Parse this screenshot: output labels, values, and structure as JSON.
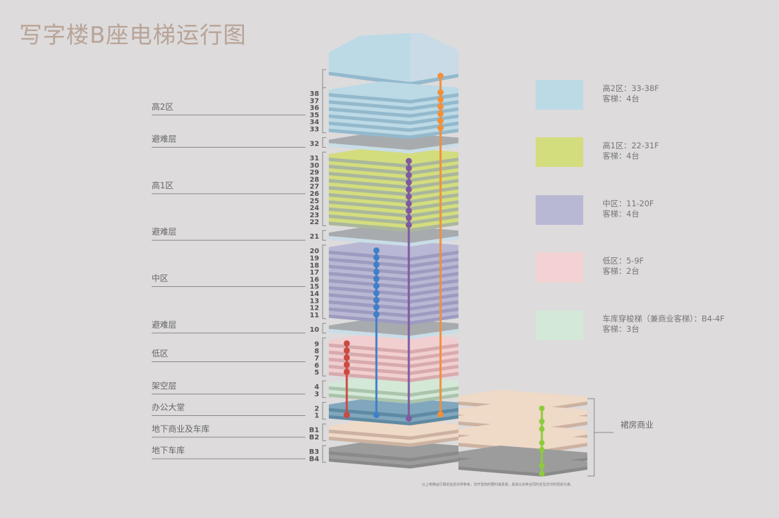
{
  "title": "写字楼B座电梯运行图",
  "zone_colors": {
    "high2": {
      "face": "#bcd9e6",
      "edge": "#93b9cd"
    },
    "refuge": {
      "face": "#a8abae",
      "edge": "#c8dde7"
    },
    "high1": {
      "face": "#d3dd7d",
      "edge": "#aab79c"
    },
    "mid": {
      "face": "#b9b8d4",
      "edge": "#9d9bc0"
    },
    "low": {
      "face": "#f1cfd1",
      "edge": "#d8aaae"
    },
    "shuttle": {
      "face": "#d4e8d8",
      "edge": "#abc4ac"
    },
    "lobby": {
      "face": "#80a7bd",
      "edge": "#5f8aa3"
    },
    "basement_retail": {
      "face": "#efd9c7",
      "edge": "#ccb2a1"
    },
    "garage": {
      "face": "#9c9c9c",
      "edge": "#8a8a8a"
    }
  },
  "floors": [
    {
      "label": "38",
      "zone": "high2"
    },
    {
      "label": "37",
      "zone": "high2"
    },
    {
      "label": "36",
      "zone": "high2"
    },
    {
      "label": "35",
      "zone": "high2"
    },
    {
      "label": "34",
      "zone": "high2"
    },
    {
      "label": "33",
      "zone": "high2"
    },
    {
      "label": "32",
      "zone": "refuge"
    },
    {
      "label": "31",
      "zone": "high1"
    },
    {
      "label": "30",
      "zone": "high1"
    },
    {
      "label": "29",
      "zone": "high1"
    },
    {
      "label": "28",
      "zone": "high1"
    },
    {
      "label": "27",
      "zone": "high1"
    },
    {
      "label": "26",
      "zone": "high1"
    },
    {
      "label": "25",
      "zone": "high1"
    },
    {
      "label": "24",
      "zone": "high1"
    },
    {
      "label": "23",
      "zone": "high1"
    },
    {
      "label": "22",
      "zone": "high1"
    },
    {
      "label": "21",
      "zone": "refuge"
    },
    {
      "label": "20",
      "zone": "mid"
    },
    {
      "label": "19",
      "zone": "mid"
    },
    {
      "label": "18",
      "zone": "mid"
    },
    {
      "label": "17",
      "zone": "mid"
    },
    {
      "label": "16",
      "zone": "mid"
    },
    {
      "label": "15",
      "zone": "mid"
    },
    {
      "label": "14",
      "zone": "mid"
    },
    {
      "label": "13",
      "zone": "mid"
    },
    {
      "label": "12",
      "zone": "mid"
    },
    {
      "label": "11",
      "zone": "mid"
    },
    {
      "label": "10",
      "zone": "refuge"
    },
    {
      "label": "9",
      "zone": "low"
    },
    {
      "label": "8",
      "zone": "low"
    },
    {
      "label": "7",
      "zone": "low"
    },
    {
      "label": "6",
      "zone": "low"
    },
    {
      "label": "5",
      "zone": "low"
    },
    {
      "label": "4",
      "zone": "shuttle"
    },
    {
      "label": "3",
      "zone": "shuttle"
    },
    {
      "label": "2",
      "zone": "lobby"
    },
    {
      "label": "1",
      "zone": "lobby"
    },
    {
      "label": "B1",
      "zone": "basement_retail"
    },
    {
      "label": "B2",
      "zone": "basement_retail"
    },
    {
      "label": "B3",
      "zone": "garage"
    },
    {
      "label": "B4",
      "zone": "garage"
    }
  ],
  "zone_labels": [
    {
      "text": "高2区",
      "zone_floors": [
        "38",
        "33"
      ]
    },
    {
      "text": "避难层",
      "zone_floors": [
        "32",
        "32"
      ]
    },
    {
      "text": "高1区",
      "zone_floors": [
        "31",
        "22"
      ]
    },
    {
      "text": "避难层",
      "zone_floors": [
        "21",
        "21"
      ]
    },
    {
      "text": "中区",
      "zone_floors": [
        "20",
        "11"
      ]
    },
    {
      "text": "避难层",
      "zone_floors": [
        "10",
        "10"
      ]
    },
    {
      "text": "低区",
      "zone_floors": [
        "9",
        "5"
      ]
    },
    {
      "text": "架空层",
      "zone_floors": [
        "4",
        "3"
      ]
    },
    {
      "text": "办公大堂",
      "zone_floors": [
        "2",
        "1"
      ]
    },
    {
      "text": "地下商业及车库",
      "zone_floors": [
        "B1",
        "B2"
      ]
    },
    {
      "text": "地下车库",
      "zone_floors": [
        "B3",
        "B4"
      ]
    }
  ],
  "elevators": [
    {
      "color": "#cc4a3f",
      "stops": [
        "9",
        "8",
        "7",
        "6",
        "5",
        "1"
      ]
    },
    {
      "color": "#3f7fc8",
      "stops": [
        "20",
        "19",
        "18",
        "17",
        "16",
        "15",
        "14",
        "13",
        "12",
        "11",
        "1"
      ]
    },
    {
      "color": "#7f5aa0",
      "stops": [
        "31",
        "30",
        "29",
        "28",
        "27",
        "26",
        "25",
        "24",
        "23",
        "22",
        "1"
      ]
    },
    {
      "color": "#f0903a",
      "stops": [
        "38",
        "37",
        "36",
        "35",
        "34",
        "33",
        "1"
      ],
      "to_roof": true
    }
  ],
  "podium_elevator": {
    "color": "#8ccc3c"
  },
  "podium_label": "裙房商业",
  "legend": [
    {
      "color": "#bcd9e6",
      "line1": "高2区：33-38F",
      "line2": "客梯：4台"
    },
    {
      "color": "#d3dd7d",
      "line1": "高1区：22-31F",
      "line2": "客梯：4台"
    },
    {
      "color": "#b9b8d4",
      "line1": "中区：11-20F",
      "line2": "客梯：4台"
    },
    {
      "color": "#f4d2d3",
      "line1": "低区：5-9F",
      "line2": "客梯：2台"
    },
    {
      "color": "#d4e8d8",
      "line1": "车库穿梭梯（兼商业客梯）：B4-4F",
      "line2": "客梯：3台"
    }
  ],
  "footnote": "以上电梯运行相关信息仅供参考，非开发商的要约或承诺，具体以买卖合同约定及交付时现状为准。"
}
